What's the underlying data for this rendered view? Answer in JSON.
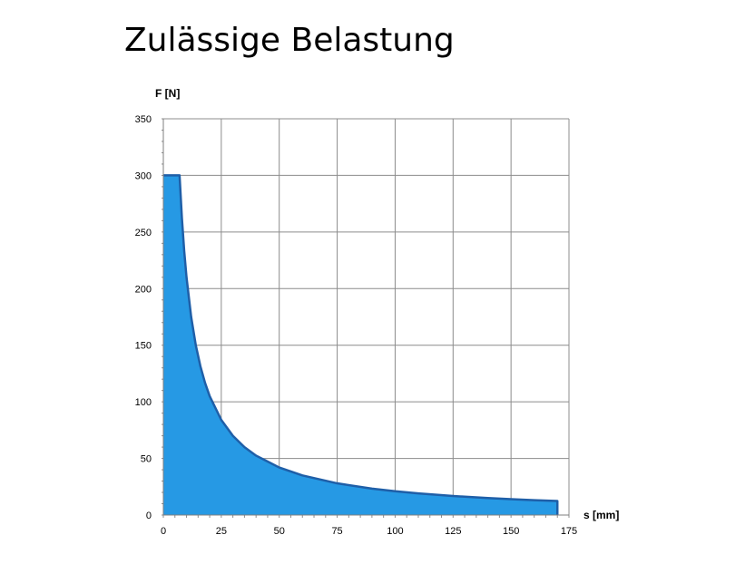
{
  "title": "Zulässige Belastung",
  "chart_data": {
    "type": "area",
    "title": "Zulässige Belastung",
    "xlabel": "s [mm]",
    "ylabel": "F [N]",
    "xlim": [
      0,
      175
    ],
    "ylim": [
      0,
      350
    ],
    "x_ticks": [
      0,
      25,
      50,
      75,
      100,
      125,
      150,
      175
    ],
    "y_ticks": [
      0,
      50,
      100,
      150,
      200,
      250,
      300,
      350
    ],
    "grid": true,
    "fill_color": "#2699E4",
    "line_color": "#1F5FA8",
    "x": [
      0,
      7,
      8,
      9,
      10,
      12,
      14,
      16,
      18,
      20,
      25,
      30,
      35,
      40,
      50,
      60,
      75,
      90,
      100,
      110,
      125,
      140,
      150,
      160,
      170
    ],
    "y": [
      300,
      300,
      262.5,
      233.3,
      210,
      175,
      150,
      131.3,
      116.7,
      105,
      84,
      70,
      60,
      52.5,
      42,
      35,
      28,
      23.3,
      21,
      19.1,
      16.8,
      15,
      14,
      13.1,
      12.4
    ]
  }
}
